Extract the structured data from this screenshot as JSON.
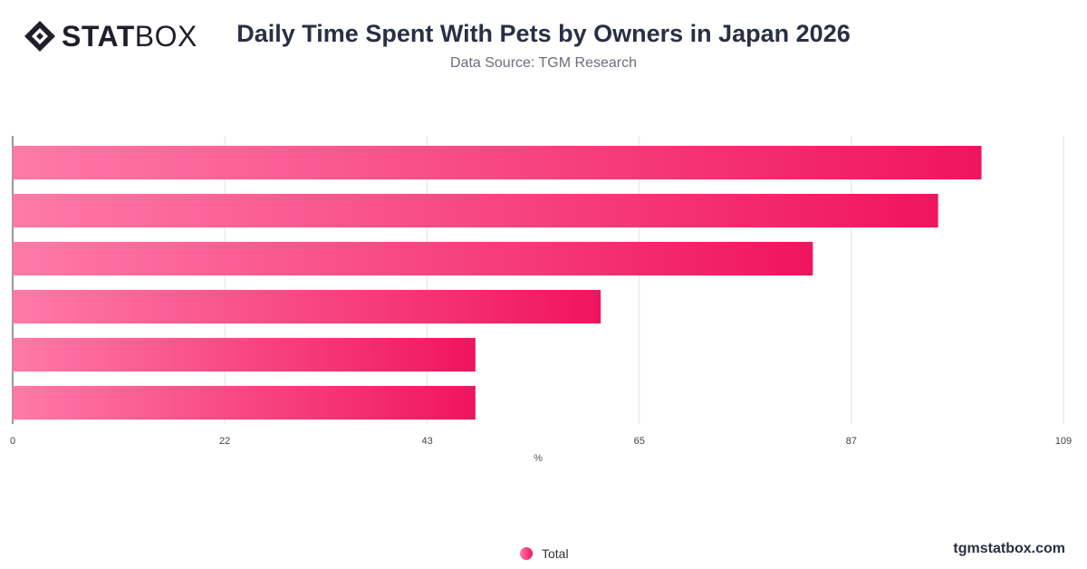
{
  "brand": {
    "bold": "STAT",
    "light": "BOX",
    "site": "tgmstatbox.com"
  },
  "chart_data": {
    "type": "bar",
    "orientation": "horizontal",
    "title": "Daily Time Spent With Pets by Owners in Japan 2026",
    "subtitle": "Data Source: TGM Research",
    "xlabel": "%",
    "xlim": [
      0,
      109
    ],
    "xticks": [
      0,
      22,
      43,
      65,
      87,
      109
    ],
    "grid": true,
    "legend_position": "bottom-center",
    "categories": [
      "",
      "",
      "",
      "",
      "",
      ""
    ],
    "series": [
      {
        "name": "Total",
        "values": [
          100.5,
          96,
          83,
          61,
          48,
          48
        ]
      }
    ],
    "colors": {
      "bar_start": "#ff7aa8",
      "bar_end": "#f0145f"
    }
  }
}
